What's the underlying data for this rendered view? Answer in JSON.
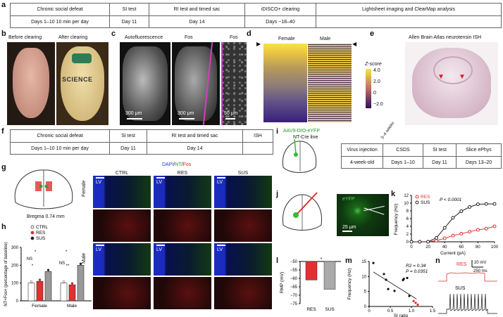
{
  "panels": {
    "a": "a",
    "b": "b",
    "c": "c",
    "d": "d",
    "e": "e",
    "f": "f",
    "g": "g",
    "h": "h",
    "i": "i",
    "j": "j",
    "k": "k",
    "l": "l",
    "m": "m",
    "n": "n"
  },
  "timeline_a": {
    "top": [
      "Chronic social defeat",
      "SI test",
      "RI test and timed sac",
      "iDISCO+ clearing",
      "Lightsheet imaging and ClearMap analysis"
    ],
    "bottom": [
      "Days 1–10 10 min per day",
      "Day 11",
      "Day 14",
      "Days ~18–40",
      ""
    ]
  },
  "panel_b": {
    "before": "Before clearing",
    "after": "After clearing",
    "ruler": "SCIENCE",
    "ruler_num": "3"
  },
  "panel_c": {
    "titles": [
      "Autofluorescence",
      "Fos",
      "Fos"
    ],
    "scales": [
      "300 μm",
      "300 μm",
      "50 μm"
    ]
  },
  "panel_d": {
    "female": "Female",
    "male": "Male",
    "zscore": "Z-score",
    "ticks": [
      "4.0",
      "2.0",
      "0",
      "−2.0"
    ]
  },
  "panel_e": {
    "title": "Allen Brain Atlas neurotensin ISH"
  },
  "timeline_f": {
    "top": [
      "Chronic social defeat",
      "SI test",
      "RI test and timed sac",
      "ISH"
    ],
    "bottom": [
      "Days 1–10 10 min per day",
      "Day 11",
      "Day 14",
      ""
    ]
  },
  "panel_g": {
    "bregma": "Bregma 0.74 mm",
    "channels": {
      "dapi": "DAPI",
      "nt": "NT",
      "fos": "Fos",
      "sep": "/"
    },
    "cols": [
      "CTRL",
      "RES",
      "SUS"
    ],
    "rows": [
      "Female",
      "Male"
    ],
    "lv": "LV"
  },
  "panel_h": {
    "legend": [
      "CTRL",
      "RES",
      "SUS"
    ],
    "ylabel": "NT+Fos+ (percentage of baseline)",
    "yticks": [
      "0",
      "100",
      "200",
      "300"
    ],
    "groups": [
      "Female",
      "Male"
    ],
    "sig": [
      "NS",
      "*",
      "*",
      "NS",
      "**",
      "*"
    ],
    "chart_data": {
      "type": "bar",
      "categories": [
        "Female",
        "Male"
      ],
      "series": [
        {
          "name": "CTRL",
          "values": [
            100,
            100
          ]
        },
        {
          "name": "RES",
          "values": [
            110,
            90
          ]
        },
        {
          "name": "SUS",
          "values": [
            165,
            200
          ]
        }
      ],
      "ylim": [
        0,
        300
      ]
    }
  },
  "panel_i": {
    "virus": "AAV9-DIO-eYFP",
    "line": "NT-Cre line",
    "top": [
      "Virus injection",
      "CSDS",
      "SI test",
      "Slice ePhys"
    ],
    "bottom": [
      "4-week-old",
      "Days 1–10",
      "Day 11",
      "Days 13–20"
    ],
    "gap": "3–4 weeks"
  },
  "panel_j": {
    "label": "eYFP",
    "scale": "25 μm"
  },
  "panel_k": {
    "legend": [
      "RES",
      "SUS"
    ],
    "pval": "P < 0.0001",
    "xlabel": "Current (pA)",
    "ylabel": "Frequency (Hz)",
    "xticks": [
      "0",
      "20",
      "40",
      "60",
      "80",
      "100"
    ],
    "yticks": [
      "0",
      "2",
      "4",
      "6",
      "8",
      "10",
      "12"
    ],
    "chart_data": {
      "type": "line",
      "x": [
        0,
        10,
        20,
        30,
        40,
        50,
        60,
        70,
        80,
        90,
        100
      ],
      "series": [
        {
          "name": "RES",
          "values": [
            0,
            0,
            0,
            0.3,
            0.9,
            1.6,
            2.1,
            2.6,
            3.1,
            3.4,
            4.0
          ]
        },
        {
          "name": "SUS",
          "values": [
            0,
            0,
            0,
            1.0,
            3.6,
            6.2,
            7.9,
            9.0,
            9.7,
            9.8,
            9.8
          ]
        }
      ],
      "xlim": [
        0,
        100
      ],
      "ylim": [
        0,
        12
      ]
    }
  },
  "panel_l": {
    "ylabel": "RMP (mV)",
    "yticks": [
      "−50",
      "−55",
      "−60",
      "−65",
      "−70",
      "−75"
    ],
    "cats": [
      "RES",
      "SUS"
    ],
    "sig": "*",
    "chart_data": {
      "type": "bar",
      "categories": [
        "RES",
        "SUS"
      ],
      "values": [
        -61,
        -66.5
      ],
      "ylim": [
        -75,
        -50
      ]
    }
  },
  "panel_m": {
    "r2": "R2 = 0.34",
    "p": "P = 0.0351",
    "xlabel": "SI ratio",
    "ylabel": "Frequency (Hz)",
    "xticks": [
      "0",
      "0.5",
      "1.0",
      "1.5"
    ],
    "yticks": [
      "0",
      "5",
      "10",
      "15"
    ],
    "chart_data": {
      "type": "scatter",
      "xlim": [
        0,
        1.5
      ],
      "ylim": [
        0,
        15
      ],
      "series": [
        {
          "name": "SUS",
          "x": [
            0.1,
            0.35,
            0.4,
            0.45,
            0.6,
            0.8,
            0.82,
            0.9,
            0.95
          ],
          "y": [
            14.5,
            10.8,
            8.9,
            5.8,
            5.2,
            8.8,
            9.2,
            9.5,
            3.5
          ]
        },
        {
          "name": "RES",
          "x": [
            1.05,
            1.1,
            1.15
          ],
          "y": [
            1.8,
            1.2,
            0.6
          ]
        }
      ]
    }
  },
  "panel_n": {
    "res": "RES",
    "sus": "SUS",
    "scale_mv": "20 mV",
    "scale_ms": "250 ms"
  },
  "colors": {
    "res": "#e03030",
    "sus": "#222222",
    "ctrl": "#ffffff",
    "magenta": "#d040c0"
  }
}
